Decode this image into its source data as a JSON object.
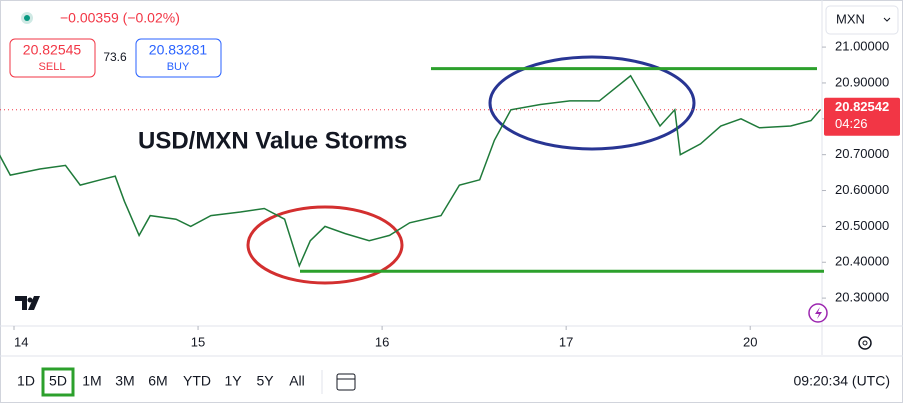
{
  "header": {
    "change": "−0.00359 (−0.02%)",
    "sell_price": "20.82545",
    "sell_label": "SELL",
    "spread": "73.6",
    "buy_price": "20.83281",
    "buy_label": "BUY",
    "currency": "MXN"
  },
  "chart_data": {
    "type": "line",
    "title": "USD/MXN Value Storms",
    "color": "#1f7a3a",
    "x": [
      -0.08,
      -0.02,
      0.14,
      0.28,
      0.36,
      0.47,
      0.55,
      0.6,
      0.68,
      0.74,
      0.88,
      0.96,
      1.07,
      1.23,
      1.36,
      1.47,
      1.55,
      1.61,
      1.69,
      1.8,
      1.93,
      2.04,
      2.15,
      2.32,
      2.42,
      2.53,
      2.61,
      2.7,
      2.86,
      3.02,
      3.18,
      3.35,
      3.43,
      3.51,
      3.59,
      3.62,
      3.73,
      3.84,
      3.95,
      4.05,
      4.22,
      4.33,
      4.38
    ],
    "values": [
      20.7,
      20.643,
      20.66,
      20.67,
      20.615,
      20.63,
      20.64,
      20.57,
      20.475,
      20.53,
      20.52,
      20.5,
      20.53,
      20.54,
      20.55,
      20.52,
      20.39,
      20.46,
      20.5,
      20.48,
      20.46,
      20.475,
      20.51,
      20.53,
      20.615,
      20.63,
      20.74,
      20.825,
      20.84,
      20.85,
      20.85,
      20.92,
      20.85,
      20.78,
      20.825,
      20.7,
      20.73,
      20.78,
      20.8,
      20.775,
      20.78,
      20.795,
      20.825
    ],
    "xlim": [
      -0.076,
      4.39
    ],
    "xticks": [
      {
        "value": 0,
        "label": "14"
      },
      {
        "value": 1,
        "label": "15"
      },
      {
        "value": 2,
        "label": "16"
      },
      {
        "value": 3,
        "label": "17"
      },
      {
        "value": 4,
        "label": "20"
      }
    ],
    "ylim": [
      20.225,
      21.109
    ],
    "yticks": [
      {
        "value": 21,
        "label": "21.00000"
      },
      {
        "value": 20.9,
        "label": "20.90000"
      },
      {
        "value": 20.8,
        "label": "20.80000"
      },
      {
        "value": 20.7,
        "label": "20.70000"
      },
      {
        "value": 20.6,
        "label": "20.60000"
      },
      {
        "value": 20.5,
        "label": "20.50000"
      },
      {
        "value": 20.4,
        "label": "20.40000"
      },
      {
        "value": 20.3,
        "label": "20.30000"
      }
    ],
    "grid": false,
    "levels": [
      20.94,
      20.375
    ],
    "level_color": "#2ca02c",
    "last_price": 20.82542,
    "last_price_color": "#f23645",
    "countdown": "04:26"
  },
  "toolbar": {
    "ranges": [
      "1D",
      "5D",
      "1M",
      "3M",
      "6M",
      "YTD",
      "1Y",
      "5Y",
      "All"
    ],
    "active": "5D",
    "clock": "09:20:34 (UTC)"
  }
}
